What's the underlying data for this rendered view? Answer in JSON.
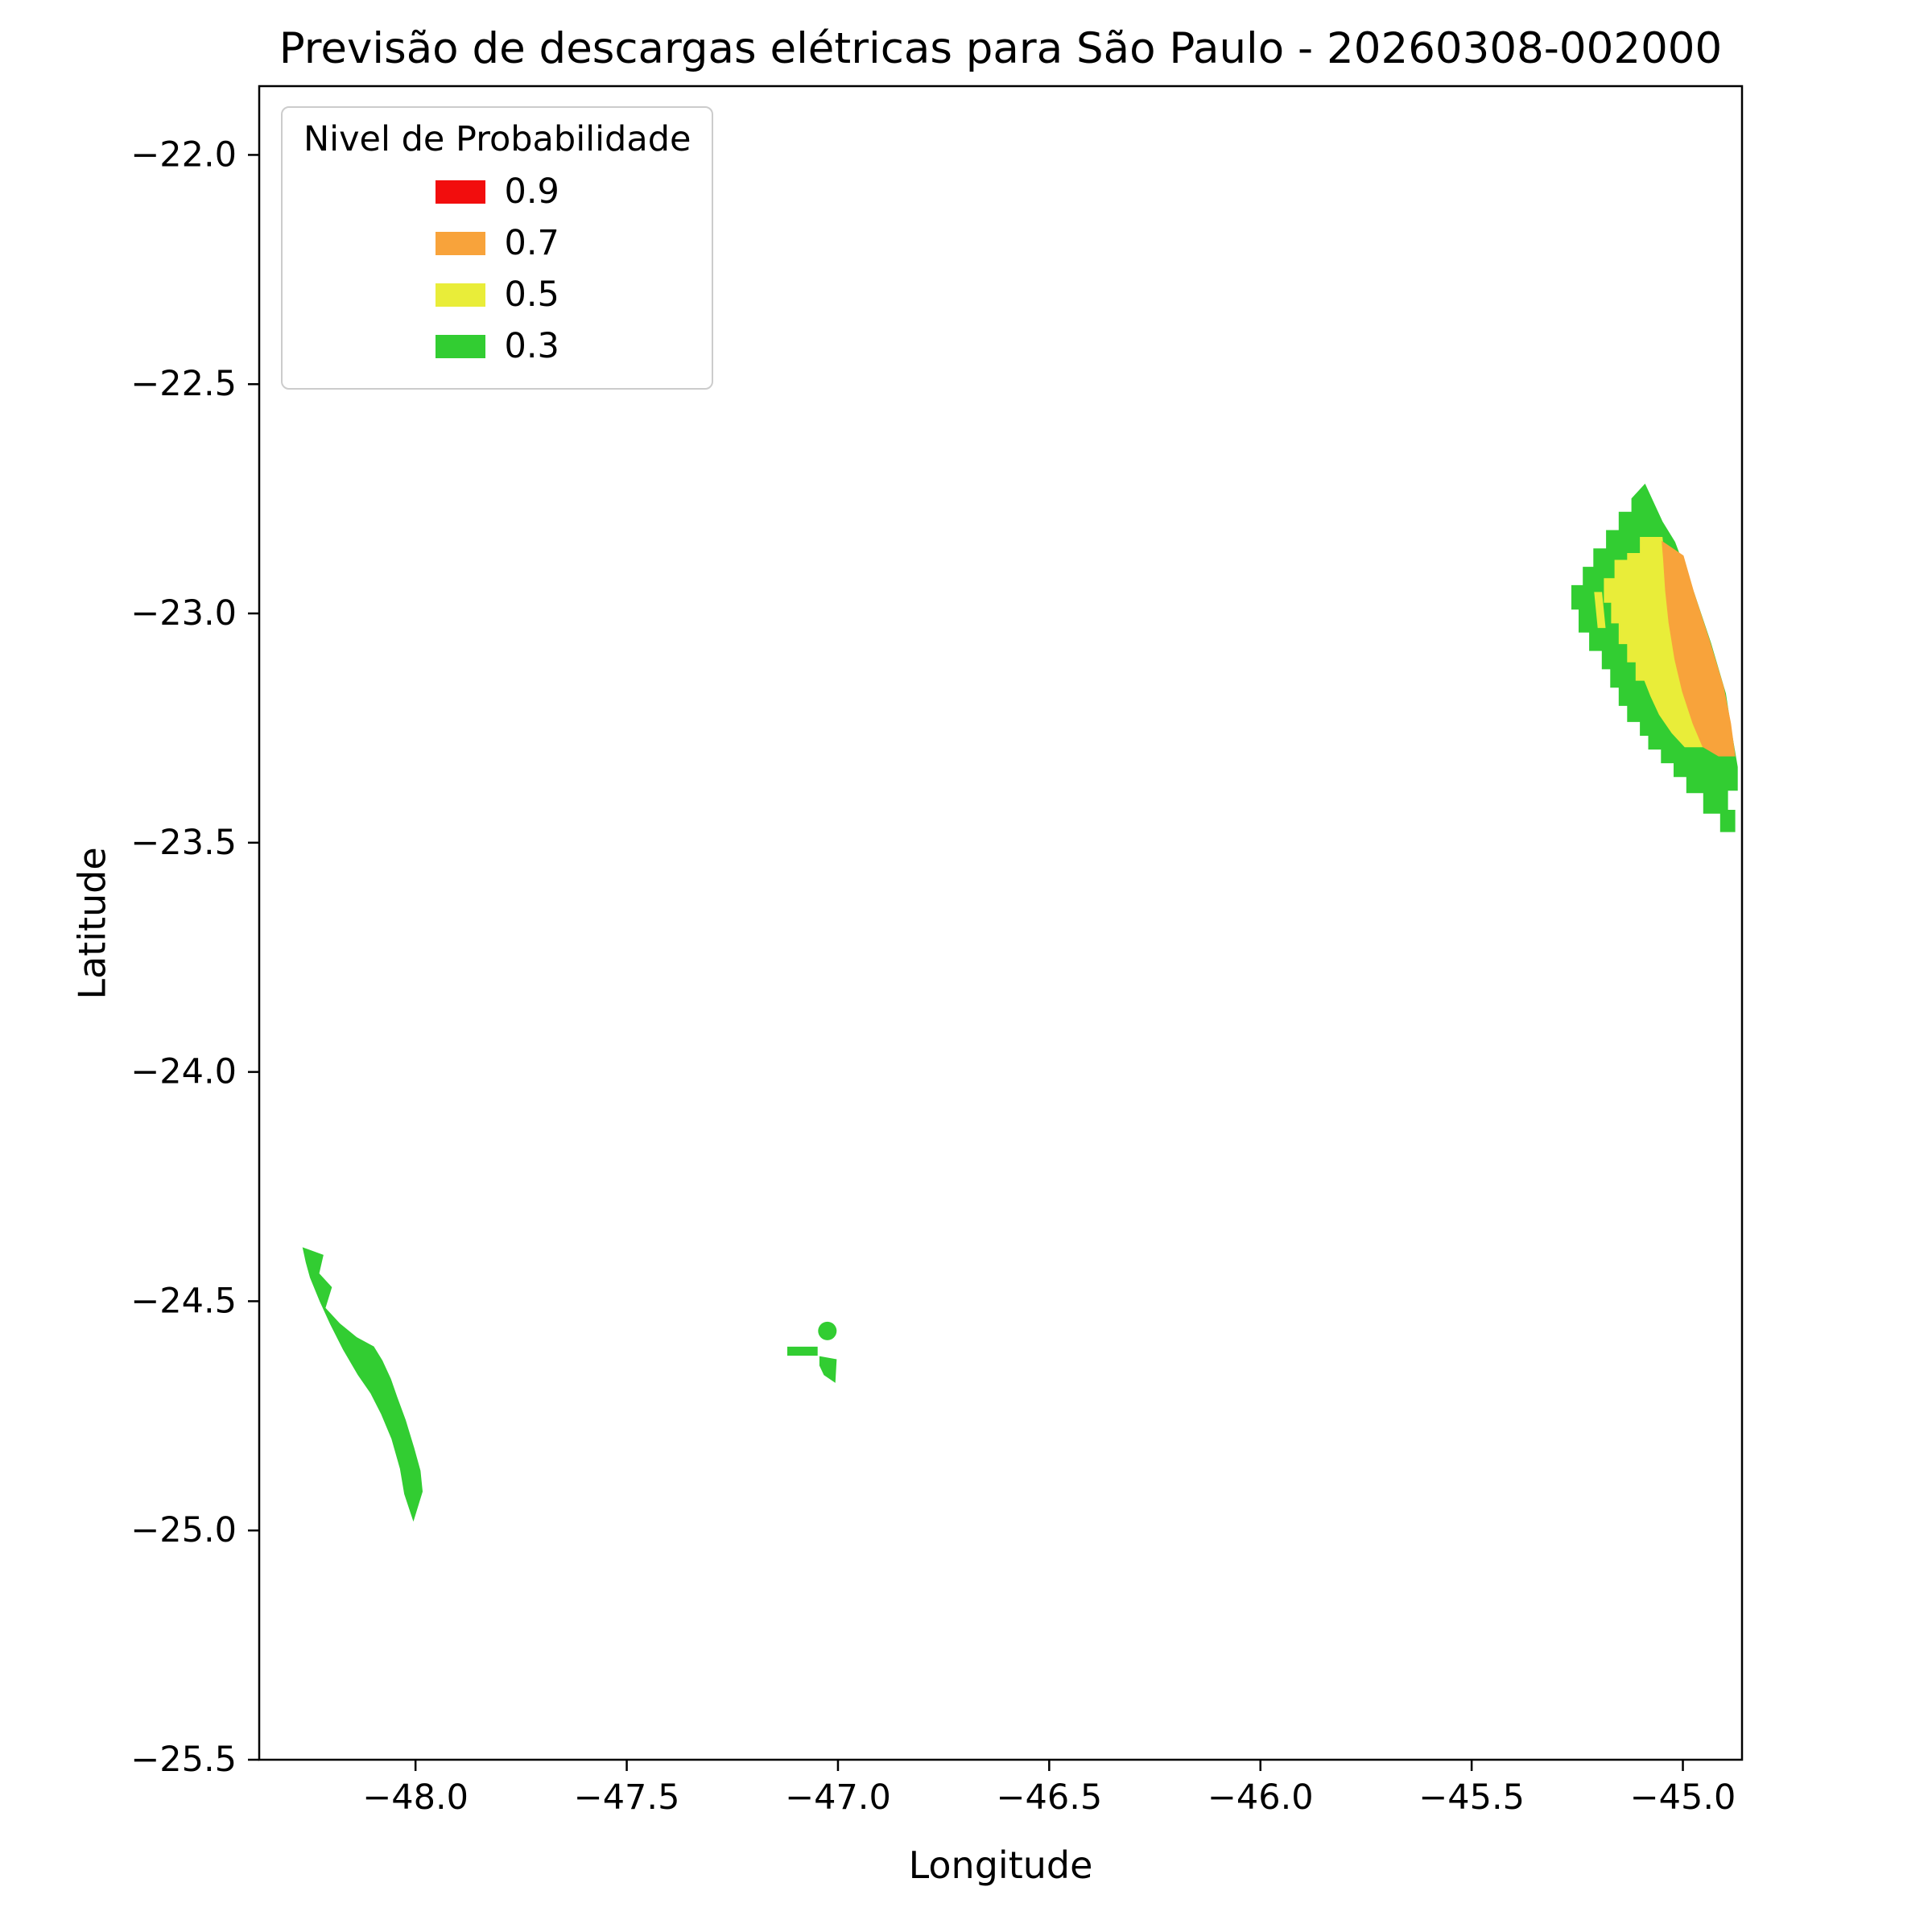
{
  "chart_data": {
    "type": "contour-map",
    "title": "Previsão de descargas elétricas para São Paulo - 20260308-002000",
    "xlabel": "Longitude",
    "ylabel": "Latitude",
    "xlim": [
      -48.37,
      -44.86
    ],
    "ylim": [
      -25.5,
      -21.85
    ],
    "xticks": [
      -48.0,
      -47.5,
      -47.0,
      -46.5,
      -46.0,
      -45.5,
      -45.0
    ],
    "yticks": [
      -22.0,
      -22.5,
      -23.0,
      -23.5,
      -24.0,
      -24.5,
      -25.0,
      -25.5
    ],
    "grid": false,
    "background": "#ffffff",
    "legend": {
      "title": "Nivel de Probabilidade",
      "position": "upper left",
      "entries": [
        {
          "label": "0.9",
          "level": "0.9"
        },
        {
          "label": "0.7",
          "level": "0.7"
        },
        {
          "label": "0.5",
          "level": "0.5"
        },
        {
          "label": "0.3",
          "level": "0.3"
        }
      ]
    },
    "level_colors": {
      "0.9": "#f20d0d",
      "0.7": "#f8a33b",
      "0.5": "#e9ed39",
      "0.3": "#32cd32"
    },
    "regions": [
      {
        "name": "northeast-cell-outer",
        "level": "0.3",
        "shape": "polygon",
        "points": [
          [
            -45.09,
            -22.72
          ],
          [
            -45.05,
            -22.8
          ],
          [
            -45.02,
            -22.845
          ],
          [
            -44.975,
            -22.955
          ],
          [
            -44.935,
            -23.065
          ],
          [
            -44.9,
            -23.175
          ],
          [
            -44.885,
            -23.265
          ],
          [
            -44.872,
            -23.335
          ],
          [
            -44.872,
            -23.385
          ],
          [
            -44.895,
            -23.385
          ],
          [
            -44.895,
            -23.43
          ],
          [
            -44.878,
            -23.43
          ],
          [
            -44.878,
            -23.475
          ],
          [
            -44.91,
            -23.475
          ],
          [
            -44.91,
            -23.435
          ],
          [
            -44.95,
            -23.435
          ],
          [
            -44.95,
            -23.39
          ],
          [
            -44.99,
            -23.39
          ],
          [
            -44.99,
            -23.355
          ],
          [
            -45.02,
            -23.355
          ],
          [
            -45.02,
            -23.325
          ],
          [
            -45.05,
            -23.325
          ],
          [
            -45.05,
            -23.295
          ],
          [
            -45.08,
            -23.295
          ],
          [
            -45.08,
            -23.265
          ],
          [
            -45.1,
            -23.265
          ],
          [
            -45.1,
            -23.235
          ],
          [
            -45.13,
            -23.235
          ],
          [
            -45.13,
            -23.2
          ],
          [
            -45.15,
            -23.2
          ],
          [
            -45.15,
            -23.16
          ],
          [
            -45.17,
            -23.16
          ],
          [
            -45.17,
            -23.12
          ],
          [
            -45.19,
            -23.12
          ],
          [
            -45.19,
            -23.08
          ],
          [
            -45.22,
            -23.08
          ],
          [
            -45.22,
            -23.04
          ],
          [
            -45.245,
            -23.04
          ],
          [
            -45.245,
            -22.99
          ],
          [
            -45.262,
            -22.99
          ],
          [
            -45.262,
            -22.94
          ],
          [
            -45.235,
            -22.94
          ],
          [
            -45.235,
            -22.9
          ],
          [
            -45.21,
            -22.9
          ],
          [
            -45.21,
            -22.86
          ],
          [
            -45.18,
            -22.86
          ],
          [
            -45.18,
            -22.82
          ],
          [
            -45.15,
            -22.82
          ],
          [
            -45.15,
            -22.78
          ],
          [
            -45.12,
            -22.78
          ],
          [
            -45.12,
            -22.75
          ]
        ]
      },
      {
        "name": "northeast-cell-sliver",
        "level": "0.5",
        "shape": "polygon",
        "points": [
          [
            -45.208,
            -22.955
          ],
          [
            -45.193,
            -22.955
          ],
          [
            -45.185,
            -23.03
          ],
          [
            -45.2,
            -23.03
          ]
        ]
      },
      {
        "name": "northeast-cell-mid",
        "level": "0.5",
        "shape": "polygon",
        "points": [
          [
            -45.1,
            -22.835
          ],
          [
            -45.05,
            -22.835
          ],
          [
            -45.045,
            -22.88
          ],
          [
            -45.04,
            -22.95
          ],
          [
            -45.032,
            -23.02
          ],
          [
            -45.018,
            -23.1
          ],
          [
            -45.0,
            -23.17
          ],
          [
            -44.975,
            -23.24
          ],
          [
            -44.952,
            -23.29
          ],
          [
            -44.995,
            -23.29
          ],
          [
            -45.025,
            -23.26
          ],
          [
            -45.055,
            -23.22
          ],
          [
            -45.075,
            -23.18
          ],
          [
            -45.09,
            -23.145
          ],
          [
            -45.11,
            -23.145
          ],
          [
            -45.11,
            -23.105
          ],
          [
            -45.13,
            -23.105
          ],
          [
            -45.13,
            -23.065
          ],
          [
            -45.15,
            -23.065
          ],
          [
            -45.15,
            -23.02
          ],
          [
            -45.168,
            -23.02
          ],
          [
            -45.168,
            -22.975
          ],
          [
            -45.185,
            -22.975
          ],
          [
            -45.185,
            -22.925
          ],
          [
            -45.16,
            -22.925
          ],
          [
            -45.16,
            -22.885
          ],
          [
            -45.13,
            -22.885
          ],
          [
            -45.13,
            -22.87
          ],
          [
            -45.1,
            -22.87
          ]
        ]
      },
      {
        "name": "northeast-cell-core",
        "level": "0.7",
        "shape": "polygon",
        "points": [
          [
            -45.048,
            -22.845
          ],
          [
            -45.0,
            -22.875
          ],
          [
            -44.975,
            -22.955
          ],
          [
            -44.938,
            -23.06
          ],
          [
            -44.905,
            -23.16
          ],
          [
            -44.888,
            -23.24
          ],
          [
            -44.878,
            -23.31
          ],
          [
            -44.915,
            -23.31
          ],
          [
            -44.952,
            -23.29
          ],
          [
            -44.975,
            -23.24
          ],
          [
            -45.0,
            -23.17
          ],
          [
            -45.018,
            -23.1
          ],
          [
            -45.032,
            -23.02
          ],
          [
            -45.04,
            -22.95
          ],
          [
            -45.045,
            -22.88
          ]
        ]
      },
      {
        "name": "southwest-band",
        "level": "0.3",
        "shape": "polygon",
        "points": [
          [
            -48.265,
            -24.385
          ],
          [
            -48.22,
            -24.4
          ],
          [
            -48.23,
            -24.44
          ],
          [
            -48.2,
            -24.47
          ],
          [
            -48.215,
            -24.515
          ],
          [
            -48.18,
            -24.55
          ],
          [
            -48.14,
            -24.58
          ],
          [
            -48.1,
            -24.6
          ],
          [
            -48.08,
            -24.63
          ],
          [
            -48.06,
            -24.67
          ],
          [
            -48.045,
            -24.71
          ],
          [
            -48.025,
            -24.76
          ],
          [
            -48.005,
            -24.82
          ],
          [
            -47.99,
            -24.87
          ],
          [
            -47.985,
            -24.915
          ],
          [
            -48.005,
            -24.975
          ],
          [
            -48.025,
            -24.92
          ],
          [
            -48.035,
            -24.865
          ],
          [
            -48.055,
            -24.8
          ],
          [
            -48.08,
            -24.745
          ],
          [
            -48.105,
            -24.7
          ],
          [
            -48.135,
            -24.66
          ],
          [
            -48.17,
            -24.605
          ],
          [
            -48.2,
            -24.55
          ],
          [
            -48.225,
            -24.5
          ],
          [
            -48.248,
            -24.448
          ],
          [
            -48.258,
            -24.415
          ]
        ]
      },
      {
        "name": "central-dot",
        "level": "0.3",
        "shape": "circle",
        "center": [
          -47.025,
          -24.565
        ],
        "radius_deg": 0.022
      },
      {
        "name": "central-dash",
        "level": "0.3",
        "shape": "polygon",
        "points": [
          [
            -47.118,
            -24.601
          ],
          [
            -47.05,
            -24.601
          ],
          [
            -47.05,
            -24.617
          ],
          [
            -47.118,
            -24.617
          ]
        ]
      },
      {
        "name": "central-patch",
        "level": "0.3",
        "shape": "polygon",
        "points": [
          [
            -47.042,
            -24.622
          ],
          [
            -47.005,
            -24.628
          ],
          [
            -47.008,
            -24.675
          ],
          [
            -47.032,
            -24.66
          ],
          [
            -47.042,
            -24.64
          ]
        ]
      }
    ]
  }
}
